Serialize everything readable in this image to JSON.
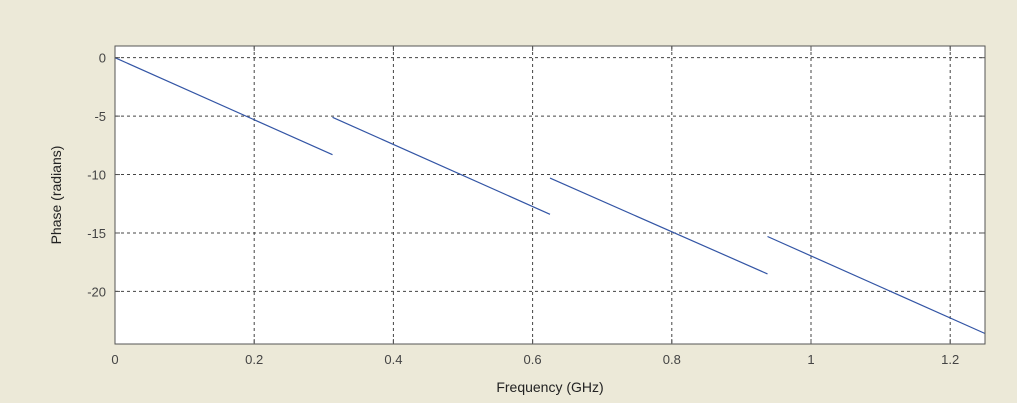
{
  "chart_data": {
    "type": "line",
    "title": "",
    "xlabel": "Frequency (GHz)",
    "ylabel": "Phase (radians)",
    "xlim": [
      0,
      1.25
    ],
    "ylim": [
      -24.5,
      1
    ],
    "grid": true,
    "x_ticks": [
      0,
      0.2,
      0.4,
      0.6,
      0.8,
      1,
      1.2
    ],
    "x_tick_labels": [
      "0",
      "0.2",
      "0.4",
      "0.6",
      "0.8",
      "1",
      "1.2"
    ],
    "y_ticks": [
      0,
      -5,
      -10,
      -15,
      -20
    ],
    "y_tick_labels": [
      "0",
      "-5",
      "-10",
      "-15",
      "-20"
    ],
    "series": [
      {
        "segments": [
          {
            "x": [
              0,
              0.3125
            ],
            "y": [
              0,
              -8.3
            ]
          },
          {
            "x": [
              0.3125,
              0.625
            ],
            "y": [
              -5.1,
              -13.4
            ]
          },
          {
            "x": [
              0.625,
              0.9375
            ],
            "y": [
              -10.3,
              -18.5
            ]
          },
          {
            "x": [
              0.9375,
              1.25
            ],
            "y": [
              -15.3,
              -23.6
            ]
          }
        ]
      }
    ],
    "colors": {
      "line": "#3355a5",
      "plot_background": "#ffffff",
      "figure_background": "#ece9d8",
      "axes": "#555555",
      "grid": "#444444"
    }
  }
}
